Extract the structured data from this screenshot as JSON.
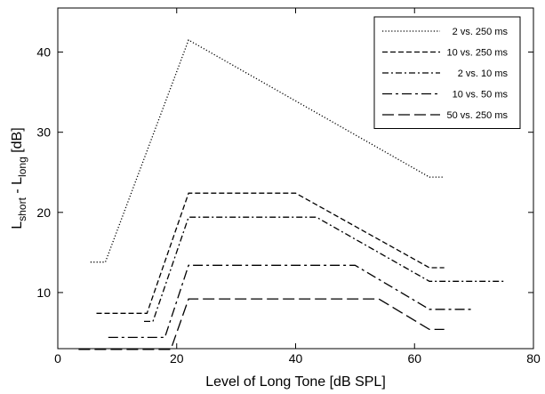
{
  "chart_data": {
    "type": "line",
    "title": "",
    "xlabel": "Level of Long Tone [dB SPL]",
    "ylabel": {
      "base1": "L",
      "sub1": "short",
      "mid": " - L",
      "sub2": "long",
      "unit": " [dB]"
    },
    "xlim": [
      0,
      80
    ],
    "ylim": [
      3,
      45.5
    ],
    "xticks": [
      0,
      20,
      40,
      60,
      80
    ],
    "yticks": [
      10,
      20,
      30,
      40
    ],
    "grid": false,
    "legend_position": "top-right",
    "series": [
      {
        "name": "2 vs. 250 ms",
        "style": "dotted",
        "x": [
          5.5,
          8,
          22,
          62.5,
          65
        ],
        "y": [
          13.8,
          13.8,
          41.5,
          24.4,
          24.4
        ]
      },
      {
        "name": "10 vs. 250 ms",
        "style": "dashed",
        "x": [
          6.5,
          15,
          22,
          40,
          62.5,
          65
        ],
        "y": [
          7.4,
          7.4,
          22.4,
          22.4,
          13.1,
          13.1
        ]
      },
      {
        "name": "2 vs. 10 ms",
        "style": "dash-dot",
        "x": [
          14.5,
          16,
          22,
          43.5,
          62.5,
          75
        ],
        "y": [
          6.4,
          6.4,
          19.4,
          19.4,
          11.4,
          11.4
        ]
      },
      {
        "name": "10 vs. 50 ms",
        "style": "dash-dot-long",
        "x": [
          8.5,
          18,
          22,
          50,
          62.5,
          70
        ],
        "y": [
          4.4,
          4.4,
          13.4,
          13.4,
          7.9,
          7.9
        ]
      },
      {
        "name": "50 vs. 250 ms",
        "style": "long-dashed",
        "x": [
          3.5,
          19,
          22,
          54,
          62.5,
          65
        ],
        "y": [
          2.9,
          2.9,
          9.2,
          9.2,
          5.4,
          5.4
        ]
      }
    ]
  }
}
